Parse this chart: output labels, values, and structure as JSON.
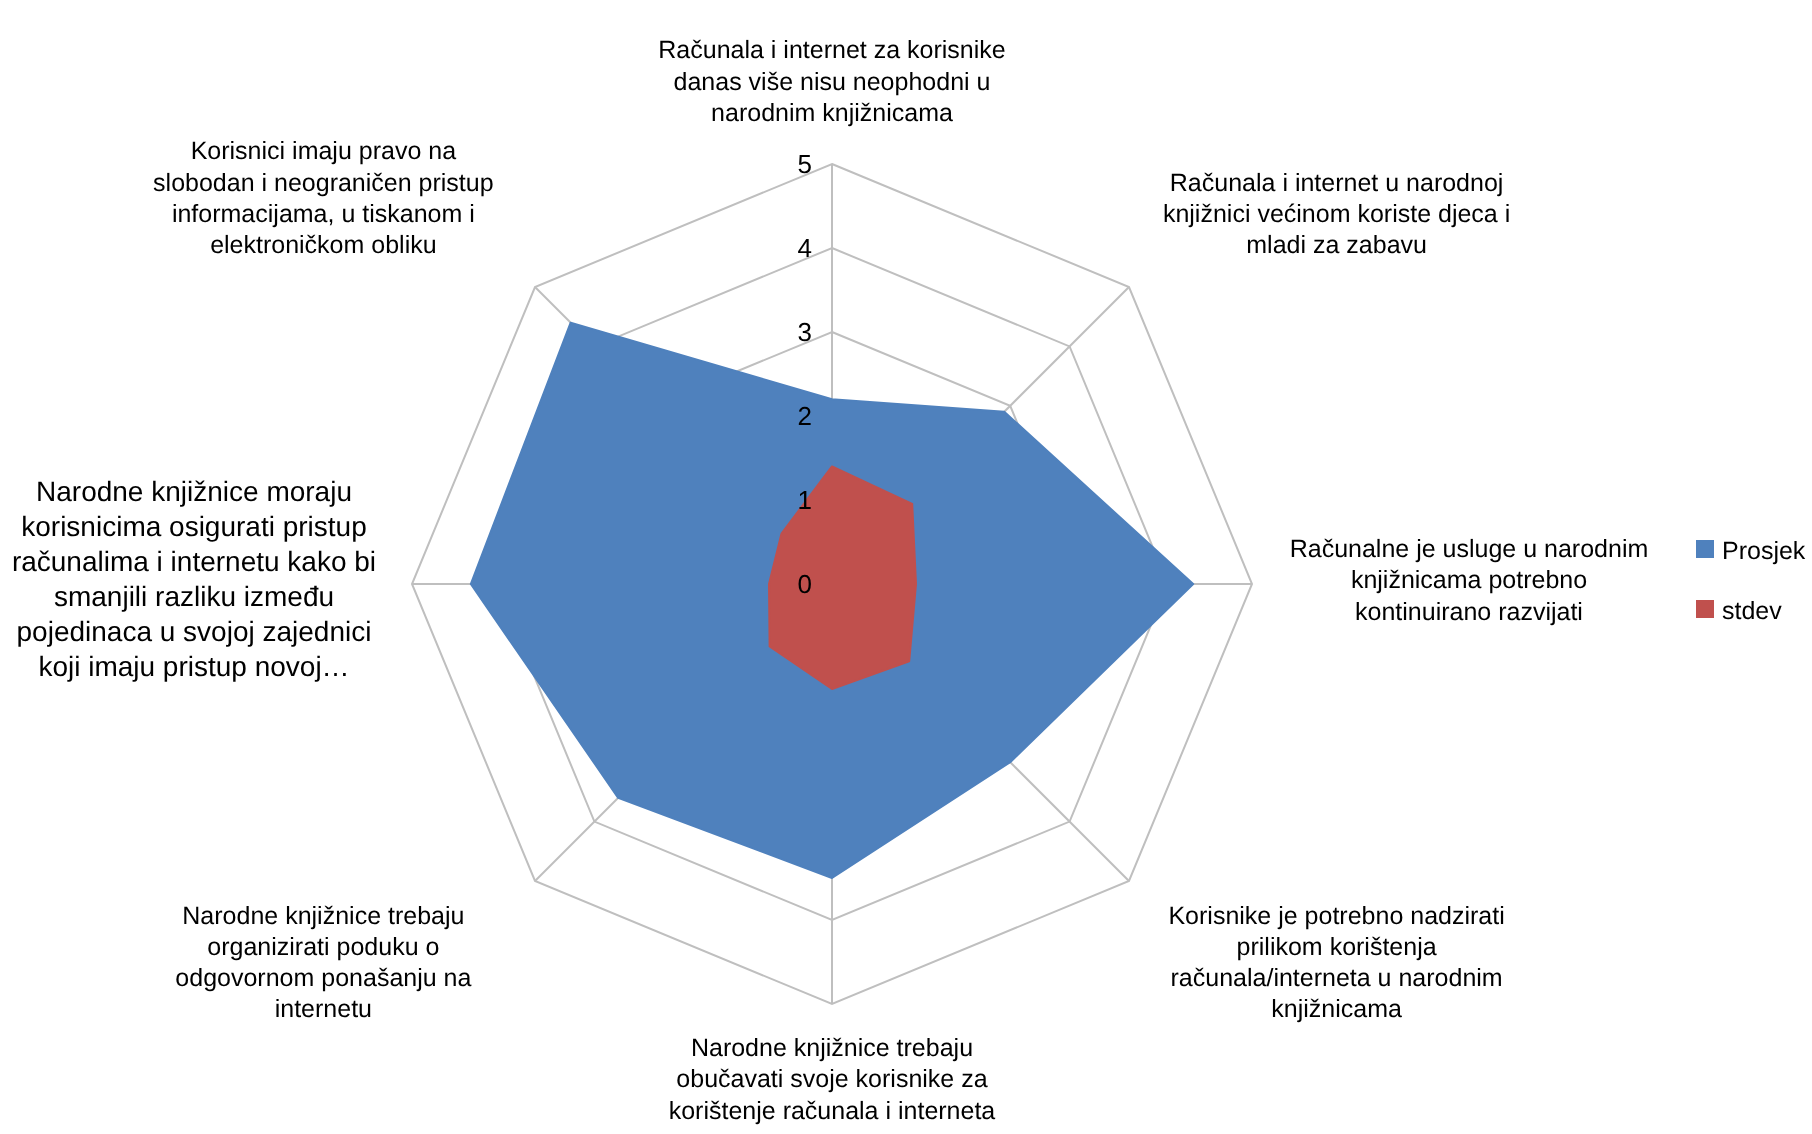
{
  "chart_data": {
    "type": "radar",
    "categories": [
      "Računala i internet za korisnike danas više nisu neophodni u narodnim knjižnicama",
      "Računala i internet u narodnoj knjižnici većinom koriste djeca i mladi za zabavu",
      "Računalne je usluge u narodnim knjižnicama potrebno kontinuirano razvijati",
      "Korisnike je potrebno nadzirati prilikom korištenja računala/interneta u narodnim knjižnicama",
      "Narodne knjižnice trebaju obučavati svoje korisnike za korištenje računala i interneta",
      "Narodne knjižnice trebaju organizirati poduku o odgovornom ponašanju na internetu",
      "Narodne knjižnice moraju korisnicima osigurati pristup računalima i internetu kako bi smanjili razliku između pojedinaca u svojoj zajednici koji imaju pristup novoj…",
      "Korisnici imaju pravo na slobodan i neograničen pristup informacijama, u tiskanom i elektroničkom obliku"
    ],
    "series": [
      {
        "name": "Prosjek",
        "color": "#4f81bd",
        "values": [
          2.2,
          2.9,
          4.3,
          3.0,
          3.5,
          3.6,
          4.3,
          4.4
        ]
      },
      {
        "name": "stdev",
        "color": "#c0504d",
        "values": [
          1.4,
          1.35,
          1.0,
          1.3,
          1.25,
          1.05,
          0.75,
          0.85
        ]
      }
    ],
    "ylim": [
      0,
      5
    ],
    "yticks": [
      0,
      1,
      2,
      3,
      4,
      5
    ],
    "grid": true,
    "legend": "right"
  }
}
